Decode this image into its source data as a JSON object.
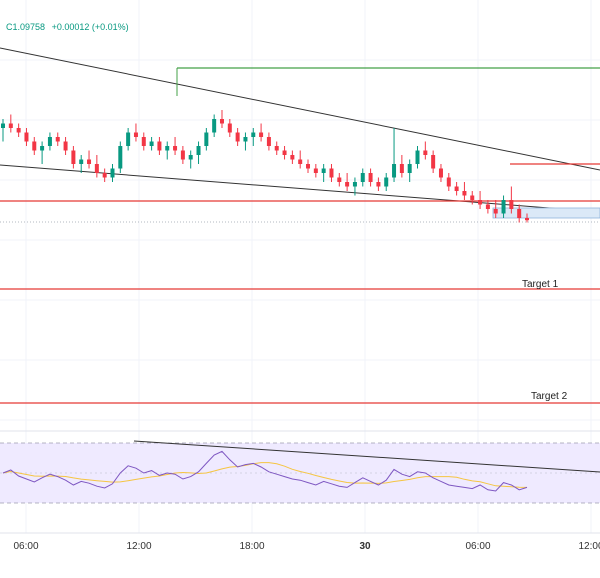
{
  "header": {
    "close_label": "C1.09758",
    "change": "+0.00012 (+0.01%)",
    "change_color": "#089981"
  },
  "colors": {
    "up": "#089981",
    "down": "#f23645",
    "trendline": "#333333",
    "level": "#e53935",
    "resistance": "#43a047",
    "zone_fill": "#dbe9f7",
    "zone_stroke": "#90b4dc",
    "rsi_line": "#7e57c2",
    "rsi_ma": "#f5c542",
    "rsi_band": "#efeaff"
  },
  "annotations": {
    "target1": "Target 1",
    "target2": "Target 2"
  },
  "x_axis": {
    "ticks": [
      {
        "label": "06:00",
        "bold": false
      },
      {
        "label": "12:00",
        "bold": false
      },
      {
        "label": "18:00",
        "bold": false
      },
      {
        "label": "30",
        "bold": true
      },
      {
        "label": "06:00",
        "bold": false
      },
      {
        "label": "12:00",
        "bold": false
      }
    ]
  },
  "chart_data": {
    "type": "candlestick",
    "grid": true,
    "ohlc_relative": [
      [
        0.6,
        0.8,
        0.3,
        0.7
      ],
      [
        0.7,
        0.9,
        0.5,
        0.6
      ],
      [
        0.6,
        0.7,
        0.4,
        0.5
      ],
      [
        0.5,
        0.6,
        0.2,
        0.3
      ],
      [
        0.3,
        0.4,
        0.0,
        0.1
      ],
      [
        0.1,
        0.3,
        -0.2,
        0.2
      ],
      [
        0.2,
        0.5,
        0.1,
        0.4
      ],
      [
        0.4,
        0.5,
        0.2,
        0.3
      ],
      [
        0.3,
        0.4,
        0.0,
        0.1
      ],
      [
        0.1,
        0.2,
        -0.3,
        -0.2
      ],
      [
        -0.2,
        0.0,
        -0.4,
        -0.1
      ],
      [
        -0.1,
        0.1,
        -0.3,
        -0.2
      ],
      [
        -0.2,
        0.0,
        -0.5,
        -0.4
      ],
      [
        -0.4,
        -0.3,
        -0.6,
        -0.5
      ],
      [
        -0.5,
        -0.2,
        -0.6,
        -0.3
      ],
      [
        -0.3,
        0.3,
        -0.4,
        0.2
      ],
      [
        0.2,
        0.6,
        0.1,
        0.5
      ],
      [
        0.5,
        0.7,
        0.3,
        0.4
      ],
      [
        0.4,
        0.5,
        0.1,
        0.2
      ],
      [
        0.2,
        0.4,
        0.1,
        0.3
      ],
      [
        0.3,
        0.4,
        0.0,
        0.1
      ],
      [
        0.1,
        0.3,
        -0.1,
        0.2
      ],
      [
        0.2,
        0.4,
        0.0,
        0.1
      ],
      [
        0.1,
        0.2,
        -0.2,
        -0.1
      ],
      [
        -0.1,
        0.1,
        -0.3,
        0.0
      ],
      [
        0.0,
        0.3,
        -0.2,
        0.2
      ],
      [
        0.2,
        0.6,
        0.1,
        0.5
      ],
      [
        0.5,
        0.9,
        0.4,
        0.8
      ],
      [
        0.8,
        1.0,
        0.6,
        0.7
      ],
      [
        0.7,
        0.8,
        0.4,
        0.5
      ],
      [
        0.5,
        0.6,
        0.2,
        0.3
      ],
      [
        0.3,
        0.5,
        0.1,
        0.4
      ],
      [
        0.4,
        0.6,
        0.2,
        0.5
      ],
      [
        0.5,
        0.7,
        0.3,
        0.4
      ],
      [
        0.4,
        0.5,
        0.1,
        0.2
      ],
      [
        0.2,
        0.3,
        0.0,
        0.1
      ],
      [
        0.1,
        0.2,
        -0.1,
        0.0
      ],
      [
        0.0,
        0.1,
        -0.2,
        -0.1
      ],
      [
        -0.1,
        0.1,
        -0.3,
        -0.2
      ],
      [
        -0.2,
        -0.1,
        -0.4,
        -0.3
      ],
      [
        -0.3,
        -0.2,
        -0.5,
        -0.4
      ],
      [
        -0.4,
        -0.2,
        -0.6,
        -0.3
      ],
      [
        -0.3,
        -0.2,
        -0.6,
        -0.5
      ],
      [
        -0.5,
        -0.4,
        -0.7,
        -0.6
      ],
      [
        -0.6,
        -0.4,
        -0.8,
        -0.7
      ],
      [
        -0.7,
        -0.5,
        -0.9,
        -0.6
      ],
      [
        -0.6,
        -0.3,
        -0.7,
        -0.4
      ],
      [
        -0.4,
        -0.3,
        -0.7,
        -0.6
      ],
      [
        -0.6,
        -0.5,
        -0.8,
        -0.7
      ],
      [
        -0.7,
        -0.4,
        -0.8,
        -0.5
      ],
      [
        -0.5,
        0.6,
        -0.6,
        -0.2
      ],
      [
        -0.2,
        0.0,
        -0.5,
        -0.4
      ],
      [
        -0.4,
        -0.1,
        -0.6,
        -0.2
      ],
      [
        -0.2,
        0.2,
        -0.3,
        0.1
      ],
      [
        0.1,
        0.3,
        -0.1,
        0.0
      ],
      [
        0.0,
        0.1,
        -0.4,
        -0.3
      ],
      [
        -0.3,
        -0.2,
        -0.6,
        -0.5
      ],
      [
        -0.5,
        -0.4,
        -0.8,
        -0.7
      ],
      [
        -0.7,
        -0.6,
        -0.9,
        -0.8
      ],
      [
        -0.8,
        -0.6,
        -1.0,
        -0.9
      ],
      [
        -0.9,
        -0.8,
        -1.1,
        -1.0
      ],
      [
        -1.0,
        -0.8,
        -1.2,
        -1.1
      ],
      [
        -1.1,
        -1.0,
        -1.3,
        -1.2
      ],
      [
        -1.2,
        -1.0,
        -1.4,
        -1.3
      ],
      [
        -1.3,
        -0.9,
        -1.4,
        -1.0
      ],
      [
        -1.0,
        -0.7,
        -1.3,
        -1.2
      ],
      [
        -1.2,
        -1.1,
        -1.5,
        -1.4
      ],
      [
        -1.4,
        -1.3,
        -1.5,
        -1.45
      ]
    ],
    "rsi_relative": [
      0.5,
      0.55,
      0.45,
      0.4,
      0.35,
      0.42,
      0.48,
      0.44,
      0.38,
      0.3,
      0.36,
      0.33,
      0.28,
      0.25,
      0.32,
      0.5,
      0.62,
      0.58,
      0.5,
      0.54,
      0.46,
      0.5,
      0.48,
      0.4,
      0.44,
      0.52,
      0.66,
      0.8,
      0.86,
      0.72,
      0.6,
      0.64,
      0.66,
      0.6,
      0.52,
      0.48,
      0.44,
      0.4,
      0.38,
      0.34,
      0.3,
      0.36,
      0.32,
      0.28,
      0.26,
      0.34,
      0.42,
      0.36,
      0.3,
      0.38,
      0.56,
      0.48,
      0.44,
      0.52,
      0.5,
      0.42,
      0.36,
      0.3,
      0.28,
      0.26,
      0.24,
      0.3,
      0.22,
      0.2,
      0.34,
      0.3,
      0.22,
      0.26
    ]
  }
}
